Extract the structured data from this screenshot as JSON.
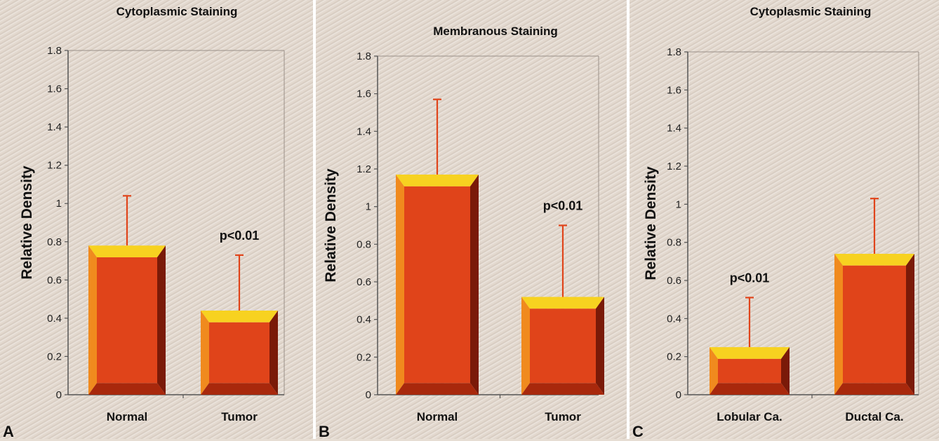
{
  "chart_data": [
    {
      "panel_label": "A",
      "type": "bar",
      "title": "Cytoplasmic Staining",
      "ylabel": "Relative Density",
      "xlabel": "",
      "ylim": [
        0,
        1.8
      ],
      "yticks": [
        "0",
        "0.2",
        "0.4",
        "0.6",
        "0.8",
        "1",
        "1.2",
        "1.4",
        "1.6",
        "1.8"
      ],
      "categories": [
        "Normal",
        "Tumor"
      ],
      "values": [
        0.78,
        0.44
      ],
      "error_upper": [
        1.04,
        0.73
      ],
      "annotations": [
        {
          "category": "Tumor",
          "text": "p<0.01"
        }
      ],
      "grid": false
    },
    {
      "panel_label": "B",
      "type": "bar",
      "title": "Membranous Staining",
      "ylabel": "Relative Density",
      "xlabel": "",
      "ylim": [
        0,
        1.8
      ],
      "yticks": [
        "0",
        "0.2",
        "0.4",
        "0.6",
        "0.8",
        "1",
        "1.2",
        "1.4",
        "1.6",
        "1.8"
      ],
      "categories": [
        "Normal",
        "Tumor"
      ],
      "values": [
        1.17,
        0.52
      ],
      "error_upper": [
        1.57,
        0.9
      ],
      "annotations": [
        {
          "category": "Tumor",
          "text": "p<0.01"
        }
      ],
      "grid": false
    },
    {
      "panel_label": "C",
      "type": "bar",
      "title": "Cytoplasmic Staining",
      "ylabel": "Relative Density",
      "xlabel": "",
      "ylim": [
        0,
        1.8
      ],
      "yticks": [
        "0",
        "0.2",
        "0.4",
        "0.6",
        "0.8",
        "1",
        "1.2",
        "1.4",
        "1.6",
        "1.8"
      ],
      "categories": [
        "Lobular Ca.",
        "Ductal Ca."
      ],
      "values": [
        0.25,
        0.74
      ],
      "error_upper": [
        0.51,
        1.03
      ],
      "annotations": [
        {
          "category": "Lobular Ca.",
          "text": "p<0.01"
        }
      ],
      "grid": false
    }
  ],
  "colors": {
    "bar_front": "#e0441a",
    "bar_top": "#f7d220",
    "bar_left": "#f08a1e",
    "bar_bottom": "#a8280c",
    "bar_right": "#7a1a08",
    "error_bar": "#e0441a",
    "axis": "#555555"
  }
}
